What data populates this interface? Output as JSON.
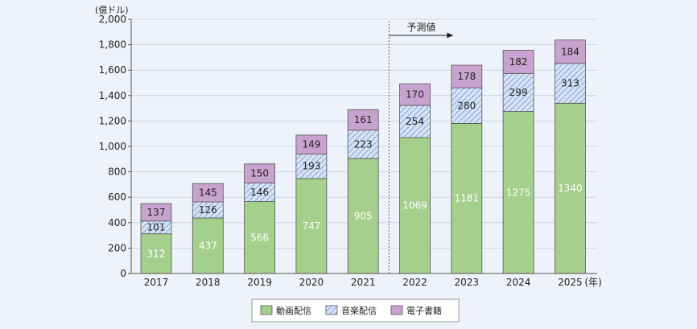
{
  "chart_data": {
    "type": "bar",
    "stacked": true,
    "y_unit": "(億ドル)",
    "x_unit": "(年)",
    "categories": [
      "2017",
      "2018",
      "2019",
      "2020",
      "2021",
      "2022",
      "2023",
      "2024",
      "2025"
    ],
    "series": [
      {
        "name": "動画配信",
        "values": [
          312,
          437,
          566,
          747,
          905,
          1069,
          1181,
          1275,
          1340
        ],
        "color": "#a5cf8c",
        "pattern": "solid"
      },
      {
        "name": "音楽配信",
        "values": [
          101,
          126,
          146,
          193,
          223,
          254,
          280,
          299,
          313
        ],
        "color": "#b7cdee",
        "pattern": "hatch"
      },
      {
        "name": "電子書籍",
        "values": [
          137,
          145,
          150,
          149,
          161,
          170,
          178,
          182,
          184
        ],
        "color": "#c9a3cf",
        "pattern": "solid"
      }
    ],
    "ylim": [
      0,
      2000
    ],
    "yticks": [
      0,
      200,
      400,
      600,
      800,
      1000,
      1200,
      1400,
      1600,
      1800,
      2000
    ],
    "ytick_labels": [
      "0",
      "200",
      "400",
      "600",
      "800",
      "1,000",
      "1,200",
      "1,400",
      "1,600",
      "1,800",
      "2,000"
    ],
    "forecast_label": "予測値",
    "forecast_start_index": 5,
    "legend_position": "bottom-center"
  }
}
